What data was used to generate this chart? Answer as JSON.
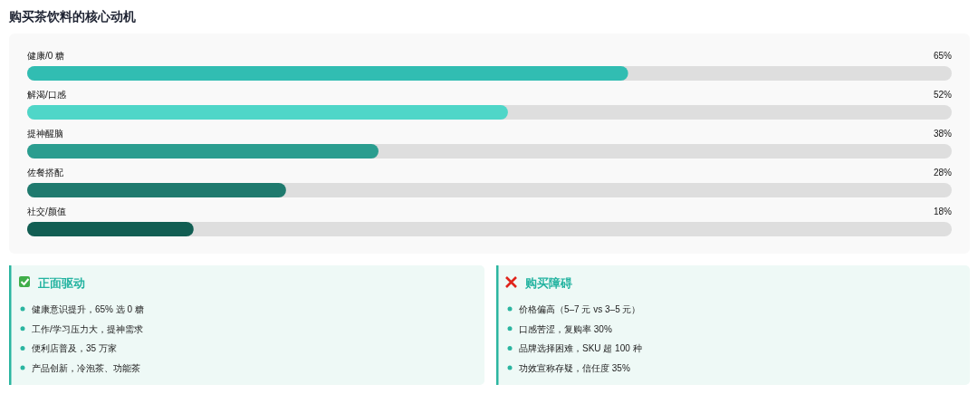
{
  "chart_data": [
    {
      "type": "bar",
      "title": "购买茶饮料的核心动机",
      "orientation": "horizontal",
      "categories": [
        "健康/0 糖",
        "解渴/口感",
        "提神醒脑",
        "佐餐搭配",
        "社交/颜值"
      ],
      "values": [
        65,
        52,
        38,
        28,
        18
      ],
      "value_labels": [
        "65%",
        "52%",
        "38%",
        "28%",
        "18%"
      ],
      "colors": [
        "#31bdb2",
        "#4fd6c8",
        "#2a9d8f",
        "#1f7a6e",
        "#125e53"
      ],
      "xlim": [
        0,
        100
      ]
    },
    {
      "type": "other",
      "title": "正面驱动",
      "annotations": [
        "健康意识提升，65% 选 0 糖",
        "工作/学习压力大，提神需求",
        "便利店普及，35 万家",
        "产品创新，冷泡茶、功能茶"
      ]
    },
    {
      "type": "other",
      "title": "购买障碍",
      "annotations": [
        "价格偏高（5–7 元 vs 3–5 元）",
        "口感苦涩，复购率 30%",
        "品牌选择困难，SKU 超 100 种",
        "功效宣称存疑，信任度 35%"
      ]
    }
  ]
}
